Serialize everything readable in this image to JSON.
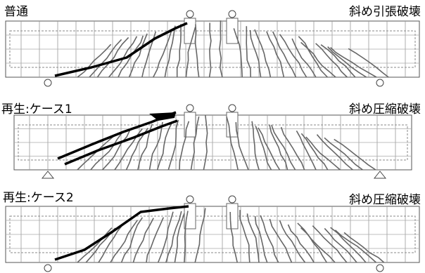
{
  "panels": [
    {
      "label": "普通",
      "failure": "斜め引張破壊"
    },
    {
      "label": "再生:ケース1",
      "failure": "斜め圧縮破壊"
    },
    {
      "label": "再生:ケース2",
      "failure": "斜め圧縮破壊"
    }
  ]
}
